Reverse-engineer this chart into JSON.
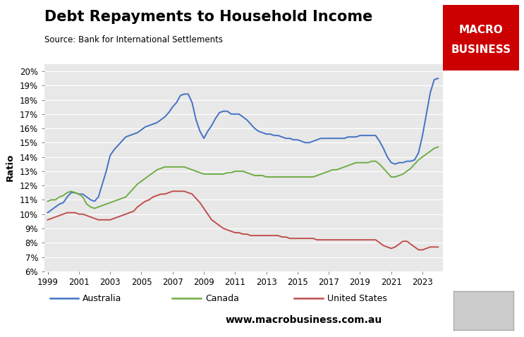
{
  "title": "Debt Repayments to Household Income",
  "subtitle": "Source: Bank for International Settlements",
  "ylabel": "Ratio",
  "website": "www.macrobusiness.com.au",
  "fig_bg_color": "#ffffff",
  "plot_bg_color": "#e8e8e8",
  "ylim": [
    0.06,
    0.205
  ],
  "yticks": [
    0.06,
    0.07,
    0.08,
    0.09,
    0.1,
    0.11,
    0.12,
    0.13,
    0.14,
    0.15,
    0.16,
    0.17,
    0.18,
    0.19,
    0.2
  ],
  "xlim": [
    1998.8,
    2024.3
  ],
  "xticks": [
    1999,
    2001,
    2003,
    2005,
    2007,
    2009,
    2011,
    2013,
    2015,
    2017,
    2019,
    2021,
    2023
  ],
  "australia": {
    "color": "#4472c4",
    "label": "Australia",
    "x": [
      1999,
      1999.25,
      1999.5,
      1999.75,
      2000,
      2000.25,
      2000.5,
      2000.75,
      2001,
      2001.25,
      2001.5,
      2001.75,
      2002,
      2002.25,
      2002.5,
      2002.75,
      2003,
      2003.25,
      2003.5,
      2003.75,
      2004,
      2004.25,
      2004.5,
      2004.75,
      2005,
      2005.25,
      2005.5,
      2005.75,
      2006,
      2006.25,
      2006.5,
      2006.75,
      2007,
      2007.25,
      2007.5,
      2007.75,
      2008,
      2008.25,
      2008.5,
      2008.75,
      2009,
      2009.25,
      2009.5,
      2009.75,
      2010,
      2010.25,
      2010.5,
      2010.75,
      2011,
      2011.25,
      2011.5,
      2011.75,
      2012,
      2012.25,
      2012.5,
      2012.75,
      2013,
      2013.25,
      2013.5,
      2013.75,
      2014,
      2014.25,
      2014.5,
      2014.75,
      2015,
      2015.25,
      2015.5,
      2015.75,
      2016,
      2016.25,
      2016.5,
      2016.75,
      2017,
      2017.25,
      2017.5,
      2017.75,
      2018,
      2018.25,
      2018.5,
      2018.75,
      2019,
      2019.25,
      2019.5,
      2019.75,
      2020,
      2020.25,
      2020.5,
      2020.75,
      2021,
      2021.25,
      2021.5,
      2021.75,
      2022,
      2022.25,
      2022.5,
      2022.75,
      2023,
      2023.25,
      2023.5,
      2023.75,
      2024
    ],
    "y": [
      0.101,
      0.103,
      0.105,
      0.107,
      0.108,
      0.112,
      0.115,
      0.115,
      0.114,
      0.114,
      0.112,
      0.11,
      0.109,
      0.112,
      0.121,
      0.13,
      0.141,
      0.145,
      0.148,
      0.151,
      0.154,
      0.155,
      0.156,
      0.157,
      0.159,
      0.161,
      0.162,
      0.163,
      0.164,
      0.166,
      0.168,
      0.171,
      0.175,
      0.178,
      0.183,
      0.184,
      0.184,
      0.178,
      0.166,
      0.158,
      0.153,
      0.158,
      0.162,
      0.167,
      0.171,
      0.172,
      0.172,
      0.17,
      0.17,
      0.17,
      0.168,
      0.166,
      0.163,
      0.16,
      0.158,
      0.157,
      0.156,
      0.156,
      0.155,
      0.155,
      0.154,
      0.153,
      0.153,
      0.152,
      0.152,
      0.151,
      0.15,
      0.15,
      0.151,
      0.152,
      0.153,
      0.153,
      0.153,
      0.153,
      0.153,
      0.153,
      0.153,
      0.154,
      0.154,
      0.154,
      0.155,
      0.155,
      0.155,
      0.155,
      0.155,
      0.151,
      0.146,
      0.14,
      0.136,
      0.135,
      0.136,
      0.136,
      0.137,
      0.137,
      0.138,
      0.143,
      0.155,
      0.17,
      0.185,
      0.194,
      0.195
    ]
  },
  "canada": {
    "color": "#70ad47",
    "label": "Canada",
    "x": [
      1999,
      1999.25,
      1999.5,
      1999.75,
      2000,
      2000.25,
      2000.5,
      2000.75,
      2001,
      2001.25,
      2001.5,
      2001.75,
      2002,
      2002.25,
      2002.5,
      2002.75,
      2003,
      2003.25,
      2003.5,
      2003.75,
      2004,
      2004.25,
      2004.5,
      2004.75,
      2005,
      2005.25,
      2005.5,
      2005.75,
      2006,
      2006.25,
      2006.5,
      2006.75,
      2007,
      2007.25,
      2007.5,
      2007.75,
      2008,
      2008.25,
      2008.5,
      2008.75,
      2009,
      2009.25,
      2009.5,
      2009.75,
      2010,
      2010.25,
      2010.5,
      2010.75,
      2011,
      2011.25,
      2011.5,
      2011.75,
      2012,
      2012.25,
      2012.5,
      2012.75,
      2013,
      2013.25,
      2013.5,
      2013.75,
      2014,
      2014.25,
      2014.5,
      2014.75,
      2015,
      2015.25,
      2015.5,
      2015.75,
      2016,
      2016.25,
      2016.5,
      2016.75,
      2017,
      2017.25,
      2017.5,
      2017.75,
      2018,
      2018.25,
      2018.5,
      2018.75,
      2019,
      2019.25,
      2019.5,
      2019.75,
      2020,
      2020.25,
      2020.5,
      2020.75,
      2021,
      2021.25,
      2021.5,
      2021.75,
      2022,
      2022.25,
      2022.5,
      2022.75,
      2023,
      2023.25,
      2023.5,
      2023.75,
      2024
    ],
    "y": [
      0.109,
      0.11,
      0.11,
      0.112,
      0.113,
      0.115,
      0.116,
      0.115,
      0.114,
      0.112,
      0.107,
      0.105,
      0.104,
      0.105,
      0.106,
      0.107,
      0.108,
      0.109,
      0.11,
      0.111,
      0.112,
      0.115,
      0.118,
      0.121,
      0.123,
      0.125,
      0.127,
      0.129,
      0.131,
      0.132,
      0.133,
      0.133,
      0.133,
      0.133,
      0.133,
      0.133,
      0.132,
      0.131,
      0.13,
      0.129,
      0.128,
      0.128,
      0.128,
      0.128,
      0.128,
      0.128,
      0.129,
      0.129,
      0.13,
      0.13,
      0.13,
      0.129,
      0.128,
      0.127,
      0.127,
      0.127,
      0.126,
      0.126,
      0.126,
      0.126,
      0.126,
      0.126,
      0.126,
      0.126,
      0.126,
      0.126,
      0.126,
      0.126,
      0.126,
      0.127,
      0.128,
      0.129,
      0.13,
      0.131,
      0.131,
      0.132,
      0.133,
      0.134,
      0.135,
      0.136,
      0.136,
      0.136,
      0.136,
      0.137,
      0.137,
      0.135,
      0.132,
      0.129,
      0.126,
      0.126,
      0.127,
      0.128,
      0.13,
      0.132,
      0.135,
      0.138,
      0.14,
      0.142,
      0.144,
      0.146,
      0.147
    ]
  },
  "us": {
    "color": "#c0504d",
    "label": "United States",
    "x": [
      1999,
      1999.25,
      1999.5,
      1999.75,
      2000,
      2000.25,
      2000.5,
      2000.75,
      2001,
      2001.25,
      2001.5,
      2001.75,
      2002,
      2002.25,
      2002.5,
      2002.75,
      2003,
      2003.25,
      2003.5,
      2003.75,
      2004,
      2004.25,
      2004.5,
      2004.75,
      2005,
      2005.25,
      2005.5,
      2005.75,
      2006,
      2006.25,
      2006.5,
      2006.75,
      2007,
      2007.25,
      2007.5,
      2007.75,
      2008,
      2008.25,
      2008.5,
      2008.75,
      2009,
      2009.25,
      2009.5,
      2009.75,
      2010,
      2010.25,
      2010.5,
      2010.75,
      2011,
      2011.25,
      2011.5,
      2011.75,
      2012,
      2012.25,
      2012.5,
      2012.75,
      2013,
      2013.25,
      2013.5,
      2013.75,
      2014,
      2014.25,
      2014.5,
      2014.75,
      2015,
      2015.25,
      2015.5,
      2015.75,
      2016,
      2016.25,
      2016.5,
      2016.75,
      2017,
      2017.25,
      2017.5,
      2017.75,
      2018,
      2018.25,
      2018.5,
      2018.75,
      2019,
      2019.25,
      2019.5,
      2019.75,
      2020,
      2020.25,
      2020.5,
      2020.75,
      2021,
      2021.25,
      2021.5,
      2021.75,
      2022,
      2022.25,
      2022.5,
      2022.75,
      2023,
      2023.25,
      2023.5,
      2023.75,
      2024
    ],
    "y": [
      0.096,
      0.097,
      0.098,
      0.099,
      0.1,
      0.101,
      0.101,
      0.101,
      0.1,
      0.1,
      0.099,
      0.098,
      0.097,
      0.096,
      0.096,
      0.096,
      0.096,
      0.097,
      0.098,
      0.099,
      0.1,
      0.101,
      0.102,
      0.105,
      0.107,
      0.109,
      0.11,
      0.112,
      0.113,
      0.114,
      0.114,
      0.115,
      0.116,
      0.116,
      0.116,
      0.116,
      0.115,
      0.114,
      0.111,
      0.108,
      0.104,
      0.1,
      0.096,
      0.094,
      0.092,
      0.09,
      0.089,
      0.088,
      0.087,
      0.087,
      0.086,
      0.086,
      0.085,
      0.085,
      0.085,
      0.085,
      0.085,
      0.085,
      0.085,
      0.085,
      0.084,
      0.084,
      0.083,
      0.083,
      0.083,
      0.083,
      0.083,
      0.083,
      0.083,
      0.082,
      0.082,
      0.082,
      0.082,
      0.082,
      0.082,
      0.082,
      0.082,
      0.082,
      0.082,
      0.082,
      0.082,
      0.082,
      0.082,
      0.082,
      0.082,
      0.08,
      0.078,
      0.077,
      0.076,
      0.077,
      0.079,
      0.081,
      0.081,
      0.079,
      0.077,
      0.075,
      0.075,
      0.076,
      0.077,
      0.077,
      0.077
    ]
  },
  "logo_color": "#cc0000",
  "logo_text1": "MACRO",
  "logo_text2": "BUSINESS"
}
